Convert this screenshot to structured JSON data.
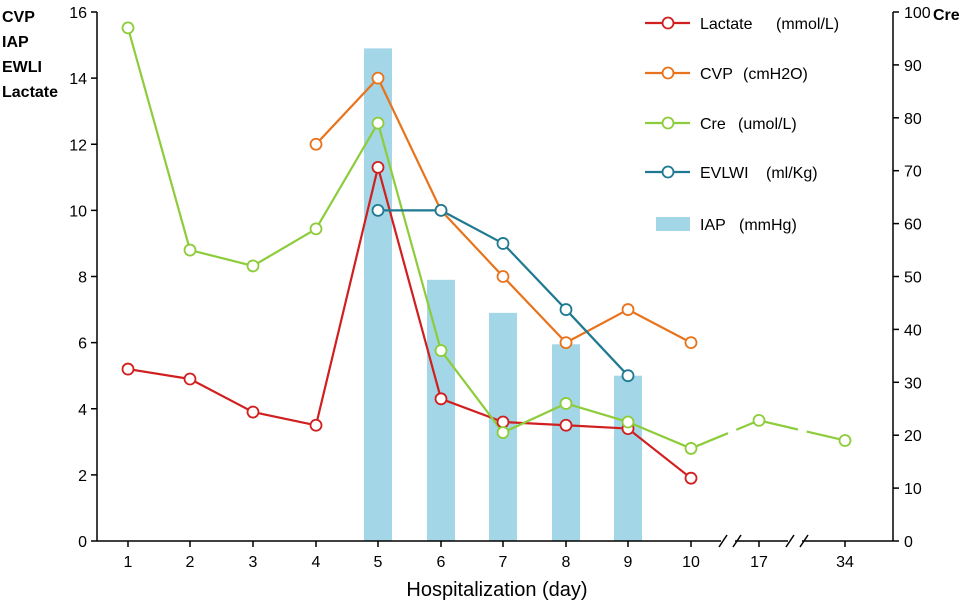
{
  "chart_data": {
    "type": "line",
    "xlabel": "Hospitalization (day)",
    "categories": [
      "1",
      "2",
      "3",
      "4",
      "5",
      "6",
      "7",
      "8",
      "9",
      "10",
      "17",
      "34"
    ],
    "left_axis": {
      "labels": [
        "CVP",
        "IAP",
        "EWLI",
        "Lactate"
      ],
      "ylim": [
        0,
        16
      ],
      "ticks": [
        0,
        2,
        4,
        6,
        8,
        10,
        12,
        14,
        16
      ]
    },
    "right_axis": {
      "label": "Cre",
      "ylim": [
        0,
        100
      ],
      "ticks": [
        0,
        10,
        20,
        30,
        40,
        50,
        60,
        70,
        80,
        90,
        100
      ]
    },
    "series": [
      {
        "name": "Lactate",
        "unit": "(mmol/L)",
        "type": "line",
        "axis": "left",
        "color": "#d11f1f",
        "values": [
          5.2,
          4.9,
          3.9,
          3.5,
          11.3,
          4.3,
          3.6,
          3.5,
          3.4,
          1.9,
          null,
          null
        ]
      },
      {
        "name": "CVP",
        "unit": "(cmH2O)",
        "type": "line",
        "axis": "left",
        "color": "#e8731c",
        "values": [
          null,
          null,
          null,
          12,
          14,
          10,
          8,
          6,
          7,
          6,
          null,
          null
        ]
      },
      {
        "name": "Cre",
        "unit": "(umol/L)",
        "type": "line",
        "axis": "right",
        "color": "#8dcc3a",
        "values": [
          97,
          55,
          52,
          59,
          79,
          36,
          20.5,
          26,
          22.5,
          17.5,
          22.8,
          19
        ]
      },
      {
        "name": "EVLWI",
        "unit": "(ml/Kg)",
        "type": "line",
        "axis": "left",
        "color": "#1f7a91",
        "values": [
          null,
          null,
          null,
          null,
          10,
          10,
          9,
          7,
          5,
          null,
          null,
          null
        ]
      },
      {
        "name": "IAP",
        "unit": "(mmHg)",
        "type": "bar",
        "axis": "left",
        "color": "#a3d6e6",
        "values": [
          null,
          null,
          null,
          null,
          14.9,
          7.9,
          6.9,
          5.95,
          5.0,
          null,
          null,
          null
        ]
      }
    ]
  }
}
